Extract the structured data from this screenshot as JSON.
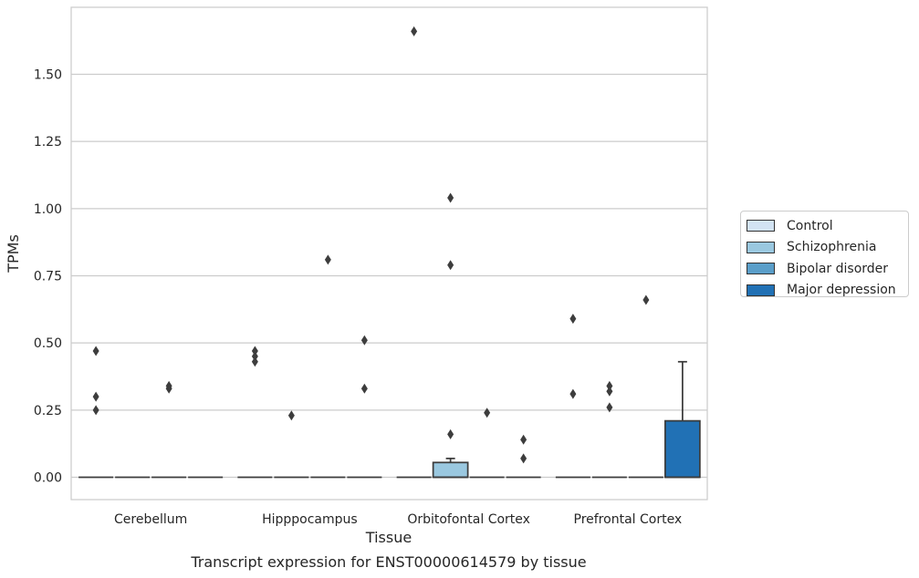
{
  "chart_data": {
    "type": "box",
    "categories": [
      "Cerebellum",
      "Hipppocampus",
      "Orbitofontal Cortex",
      "Prefrontal Cortex"
    ],
    "xlabel": "Tissue",
    "ylabel": "TPMs",
    "caption": "Transcript expression for ENST00000614579 by tissue",
    "ylim": [
      -0.08,
      1.7
    ],
    "yticks": [
      "0.00",
      "0.25",
      "0.50",
      "0.75",
      "1.00",
      "1.25",
      "1.50"
    ],
    "ytick_values": [
      0,
      0.25,
      0.5,
      0.75,
      1.0,
      1.25,
      1.5
    ],
    "grid": true,
    "legend_position": "right",
    "series": [
      {
        "name": "Control",
        "color": "#d2e3f3",
        "boxes": [
          {
            "q1": 0,
            "median": 0,
            "q3": 0,
            "whisker_low": 0,
            "whisker_high": 0,
            "outliers": [
              0.47,
              0.3,
              0.25
            ]
          },
          {
            "q1": 0,
            "median": 0,
            "q3": 0,
            "whisker_low": 0,
            "whisker_high": 0,
            "outliers": [
              0.47,
              0.45,
              0.43
            ]
          },
          {
            "q1": 0,
            "median": 0,
            "q3": 0,
            "whisker_low": 0,
            "whisker_high": 0,
            "outliers": [
              1.66
            ]
          },
          {
            "q1": 0,
            "median": 0,
            "q3": 0,
            "whisker_low": 0,
            "whisker_high": 0,
            "outliers": [
              0.59,
              0.31
            ]
          }
        ]
      },
      {
        "name": "Schizophrenia",
        "color": "#9ac8e0",
        "boxes": [
          {
            "q1": 0,
            "median": 0,
            "q3": 0,
            "whisker_low": 0,
            "whisker_high": 0,
            "outliers": []
          },
          {
            "q1": 0,
            "median": 0,
            "q3": 0,
            "whisker_low": 0,
            "whisker_high": 0,
            "outliers": [
              0.23
            ]
          },
          {
            "q1": 0,
            "median": 0,
            "q3": 0.055,
            "whisker_low": 0,
            "whisker_high": 0.07,
            "outliers": [
              1.04,
              0.79,
              0.16
            ]
          },
          {
            "q1": 0,
            "median": 0,
            "q3": 0,
            "whisker_low": 0,
            "whisker_high": 0,
            "outliers": [
              0.34,
              0.32,
              0.26
            ]
          }
        ]
      },
      {
        "name": "Bipolar disorder",
        "color": "#5a9ec9",
        "boxes": [
          {
            "q1": 0,
            "median": 0,
            "q3": 0,
            "whisker_low": 0,
            "whisker_high": 0,
            "outliers": [
              0.34,
              0.33
            ]
          },
          {
            "q1": 0,
            "median": 0,
            "q3": 0,
            "whisker_low": 0,
            "whisker_high": 0,
            "outliers": [
              0.81
            ]
          },
          {
            "q1": 0,
            "median": 0,
            "q3": 0,
            "whisker_low": 0,
            "whisker_high": 0,
            "outliers": [
              0.24
            ]
          },
          {
            "q1": 0,
            "median": 0,
            "q3": 0,
            "whisker_low": 0,
            "whisker_high": 0,
            "outliers": [
              0.66
            ]
          }
        ]
      },
      {
        "name": "Major depression",
        "color": "#2171b5",
        "boxes": [
          {
            "q1": 0,
            "median": 0,
            "q3": 0,
            "whisker_low": 0,
            "whisker_high": 0,
            "outliers": []
          },
          {
            "q1": 0,
            "median": 0,
            "q3": 0,
            "whisker_low": 0,
            "whisker_high": 0,
            "outliers": [
              0.51,
              0.33
            ]
          },
          {
            "q1": 0,
            "median": 0,
            "q3": 0,
            "whisker_low": 0,
            "whisker_high": 0,
            "outliers": [
              0.14,
              0.07
            ]
          },
          {
            "q1": 0,
            "median": 0,
            "q3": 0.21,
            "whisker_low": 0,
            "whisker_high": 0.43,
            "outliers": []
          }
        ]
      }
    ]
  }
}
